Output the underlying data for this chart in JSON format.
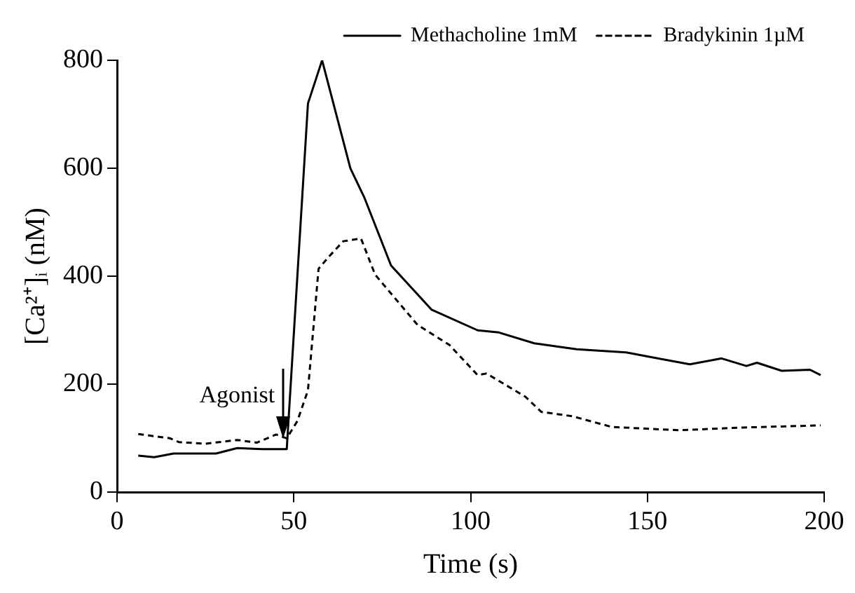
{
  "chart_data": {
    "type": "line",
    "xlabel": "Time (s)",
    "ylabel": "[Ca²⁺]ᵢ (nM)",
    "xlim": [
      0,
      200
    ],
    "xticks": [
      0,
      50,
      100,
      150,
      200
    ],
    "ylim": [
      0,
      800
    ],
    "yticks": [
      0,
      200,
      400,
      600,
      800
    ],
    "grid": false,
    "legend": "top right",
    "marker": "none",
    "annotations": [
      {
        "text": "Agonist",
        "x": 47,
        "y": 100
      }
    ],
    "series": [
      {
        "name": "Methacholine 1mM",
        "color": "#000000",
        "line_style": "solid",
        "x": [
          6,
          10.5,
          16,
          28,
          34,
          41,
          48,
          54,
          58,
          66,
          70,
          77.5,
          89,
          102,
          108,
          118,
          130,
          144,
          162,
          171,
          178,
          181,
          188,
          196,
          199
        ],
        "values": [
          68,
          65,
          72,
          72,
          82,
          80,
          80,
          720,
          800,
          600,
          545,
          420,
          338,
          300,
          296,
          276,
          265,
          259,
          237,
          248,
          234,
          240,
          225,
          227,
          217
        ]
      },
      {
        "name": "Bradykinin 1µM",
        "color": "#000000",
        "line_style": "dashed",
        "x": [
          6,
          15,
          17.5,
          25,
          34,
          39.5,
          45,
          48,
          51,
          54,
          57,
          60,
          64,
          69,
          73,
          85,
          94,
          102,
          104.5,
          115.5,
          120,
          128.7,
          140,
          159,
          177,
          199
        ],
        "values": [
          108,
          100,
          93,
          90,
          97,
          92,
          107,
          100,
          132,
          189,
          414,
          437,
          465,
          470,
          403,
          310,
          273,
          217,
          220,
          177,
          149,
          141,
          121,
          115,
          120,
          124
        ]
      }
    ]
  }
}
